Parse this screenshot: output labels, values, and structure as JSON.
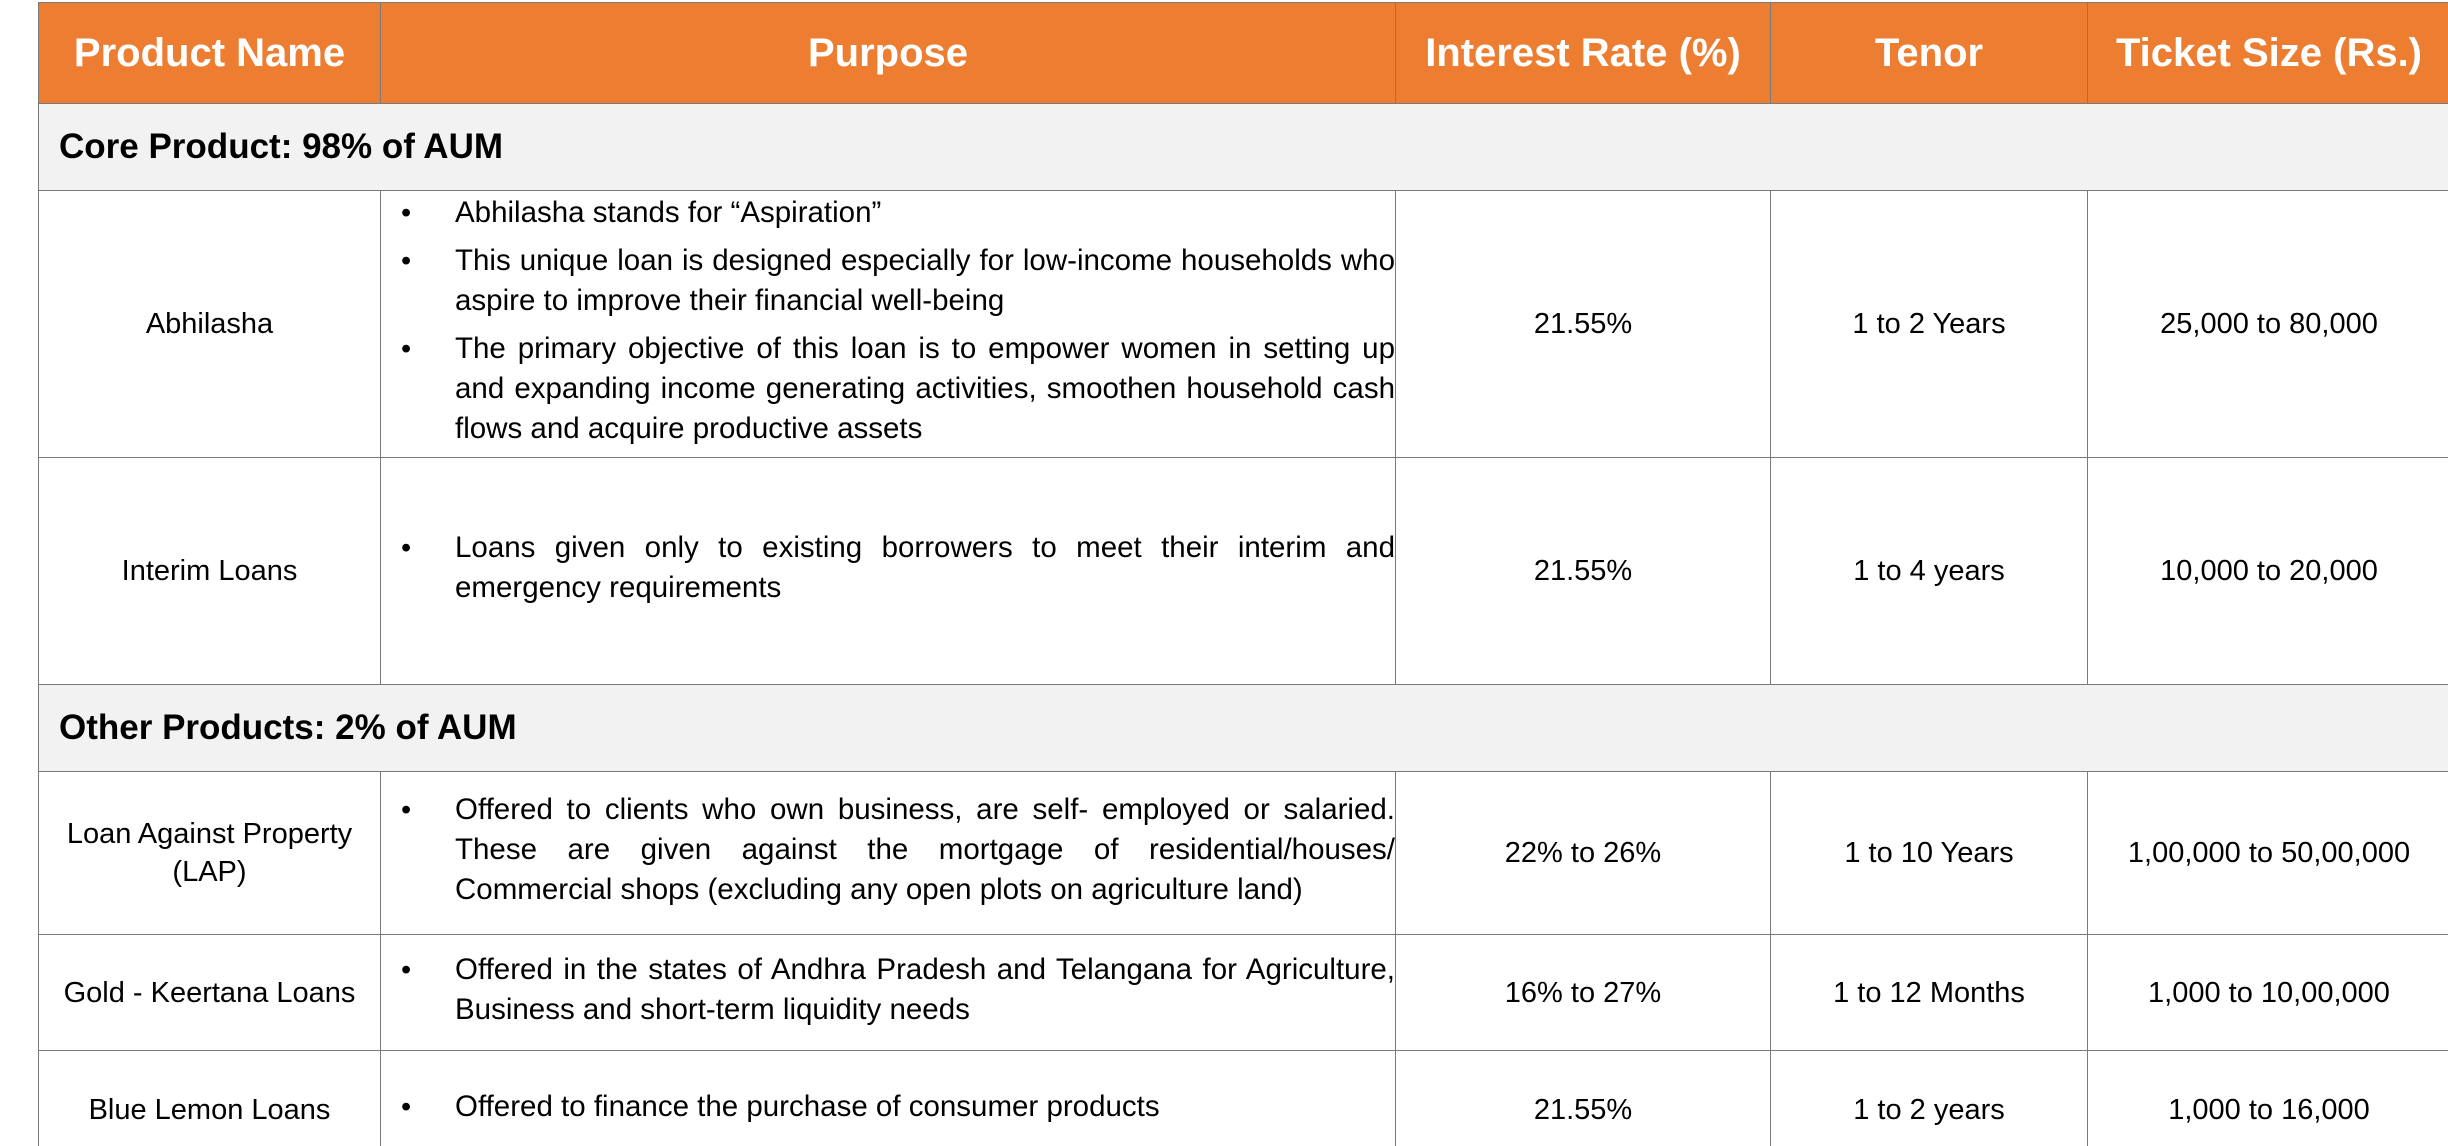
{
  "table": {
    "headers": [
      "Product Name",
      "Purpose",
      "Interest Rate (%)",
      "Tenor",
      "Ticket Size (Rs.)"
    ],
    "sections": [
      {
        "title": "Core Product: 98% of AUM",
        "rows": [
          {
            "name": "Abhilasha",
            "purpose": [
              "Abhilasha stands for “Aspiration”",
              "This unique loan is designed especially for low-income households who aspire to improve their financial well-being",
              "The primary objective of this loan is to empower women in setting up and expanding income generating activities, smoothen household cash flows and acquire productive assets"
            ],
            "rate": "21.55%",
            "tenor": "1 to 2 Years",
            "ticket": "25,000 to 80,000"
          },
          {
            "name": "Interim Loans",
            "purpose": [
              "Loans given only to existing borrowers to meet their interim and emergency requirements"
            ],
            "rate": "21.55%",
            "tenor": "1 to 4 years",
            "ticket": "10,000 to 20,000"
          }
        ]
      },
      {
        "title": "Other Products: 2% of AUM",
        "rows": [
          {
            "name": "Loan Against Property (LAP)",
            "purpose": [
              "Offered to clients who own business, are self- employed or salaried. These are given against the mortgage of residential/houses/ Commercial shops (excluding any open plots on agriculture land)"
            ],
            "rate": "22% to 26%",
            "tenor": "1 to 10 Years",
            "ticket": "1,00,000 to 50,00,000"
          },
          {
            "name": "Gold - Keertana Loans",
            "purpose": [
              "Offered in the states of Andhra Pradesh and Telangana for Agriculture, Business and short-term liquidity needs"
            ],
            "rate": "16% to 27%",
            "tenor": "1 to 12 Months",
            "ticket": "1,000 to 10,00,000"
          },
          {
            "name": "Blue Lemon Loans",
            "purpose": [
              "Offered to finance the purchase of consumer products"
            ],
            "rate": "21.55%",
            "tenor": "1 to 2 years",
            "ticket": "1,000 to 16,000"
          }
        ]
      }
    ],
    "bullet": "•"
  },
  "colors": {
    "header_bg": "#ed7d31",
    "header_text": "#ffffff",
    "section_bg": "#f2f2f2",
    "border": "#7a7a7a"
  }
}
